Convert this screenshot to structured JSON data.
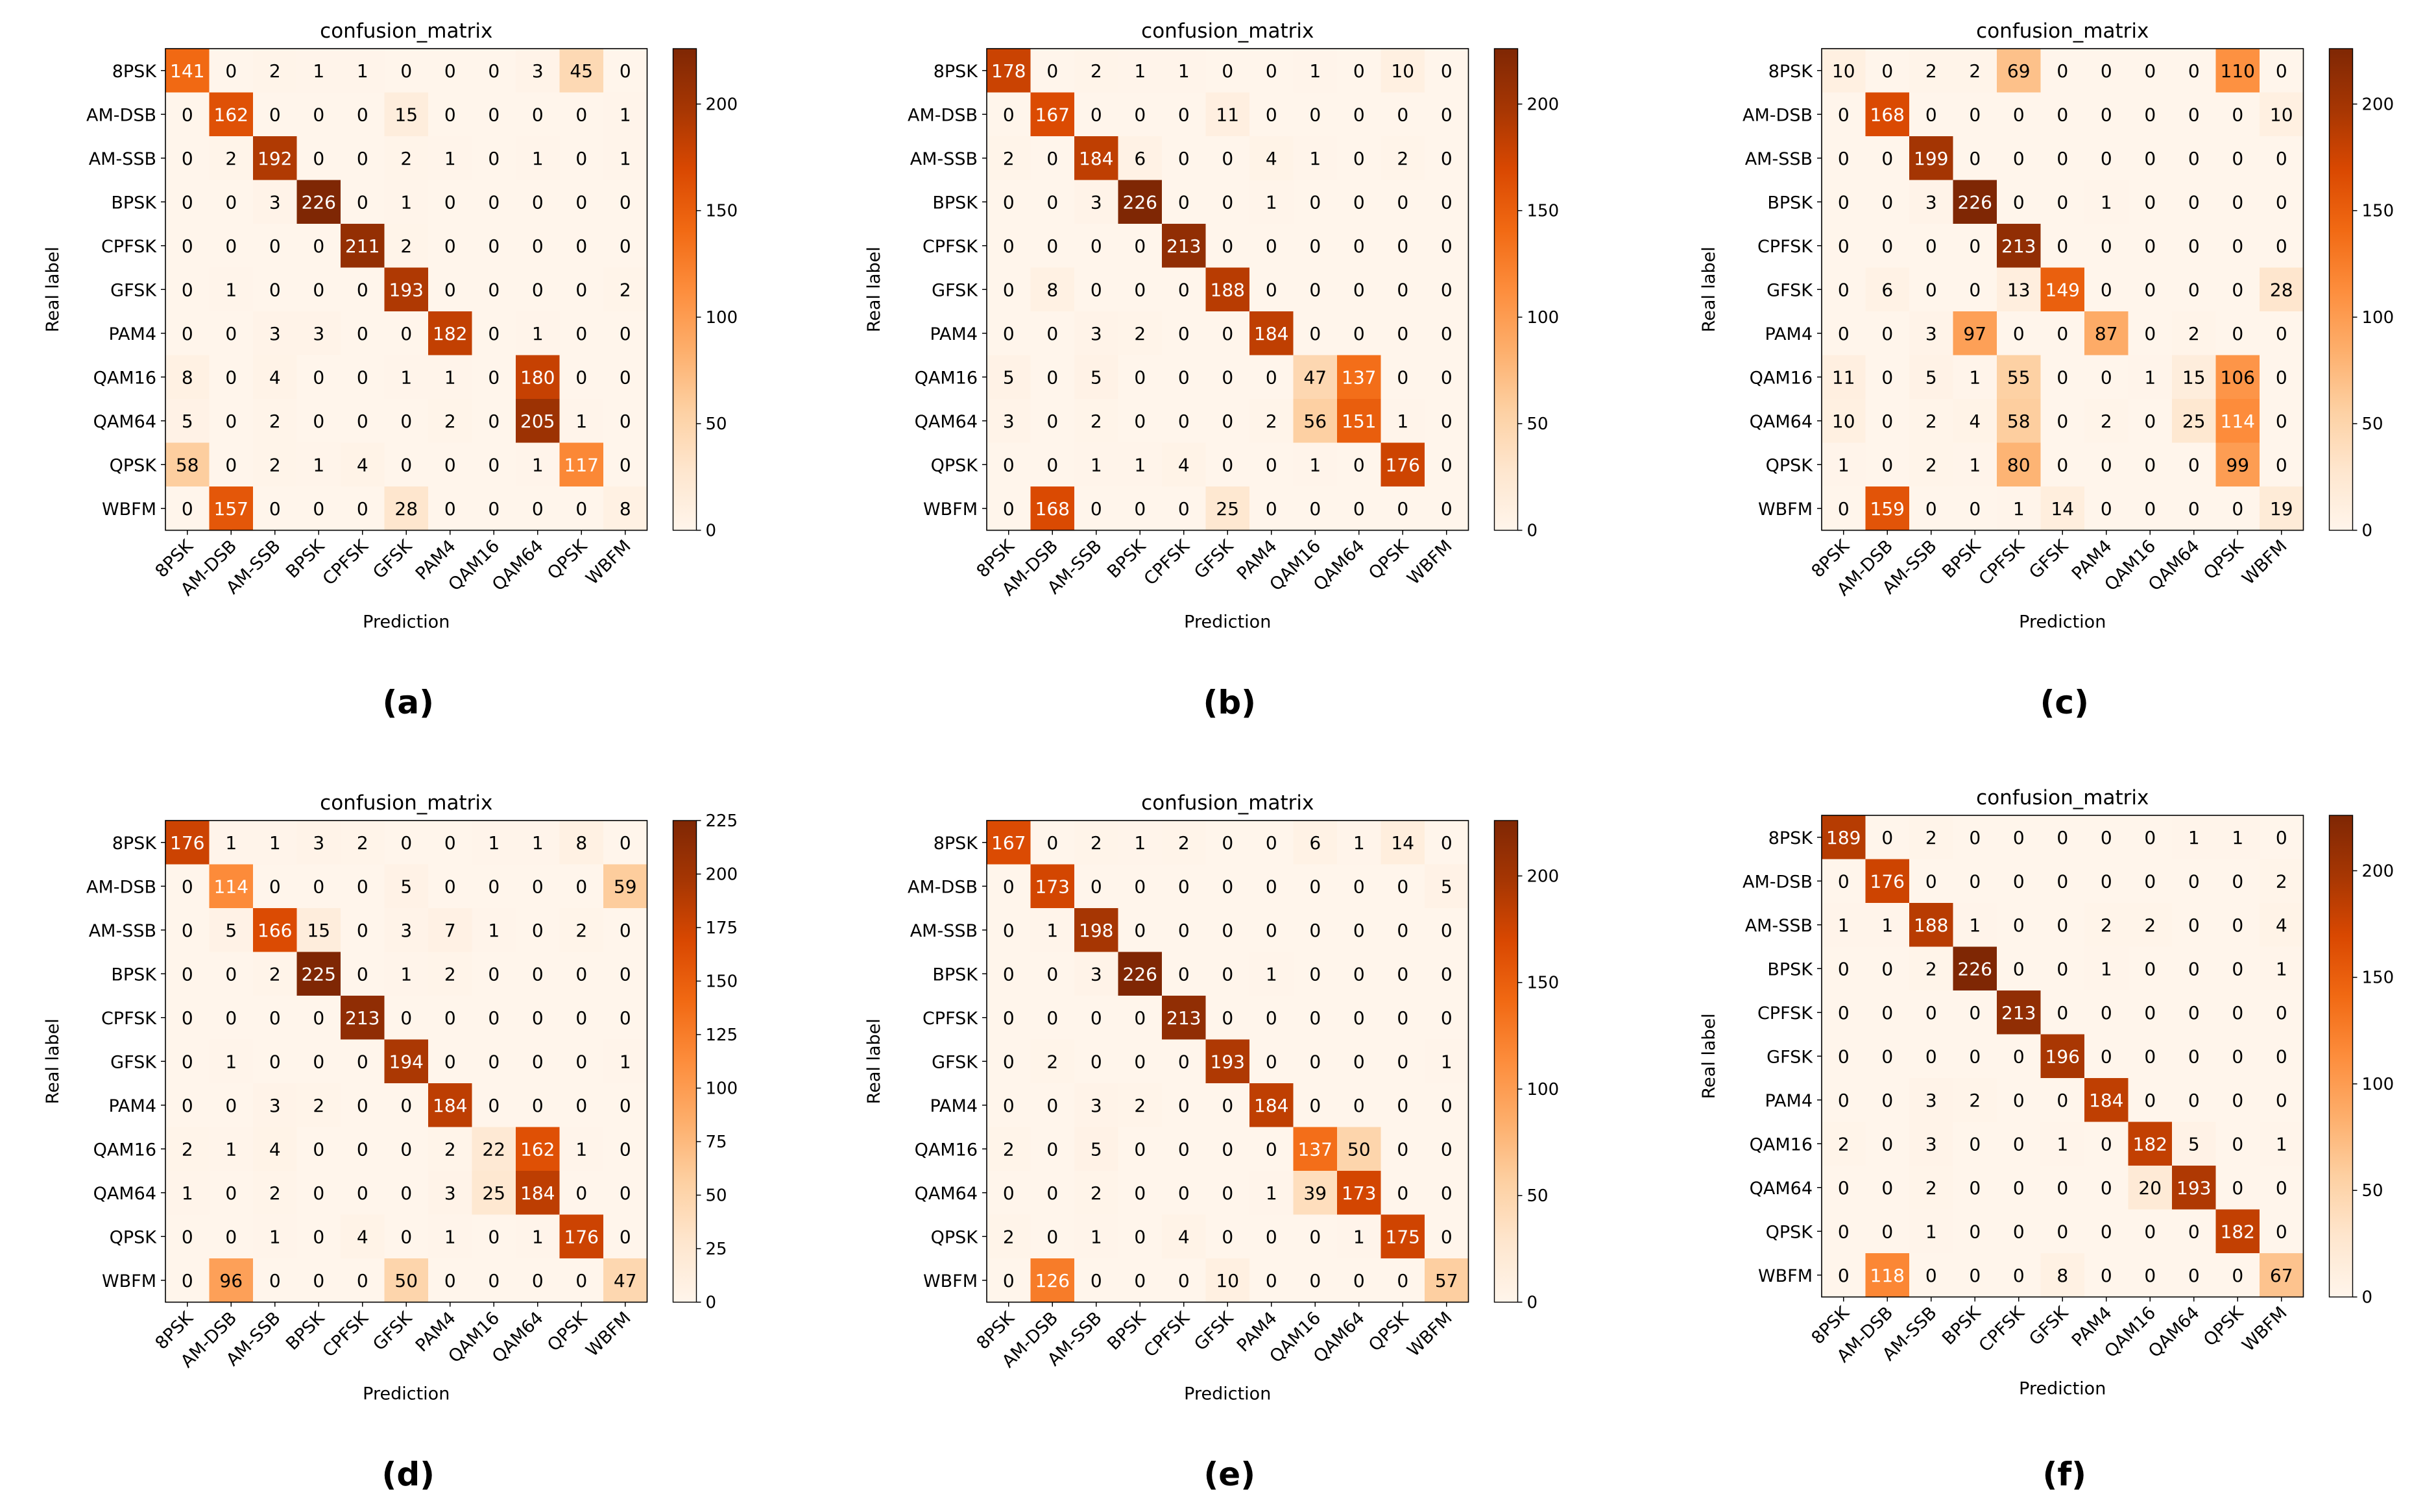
{
  "figure": {
    "panels": [
      "(a)",
      "(b)",
      "(c)",
      "(d)",
      "(e)",
      "(f)"
    ]
  },
  "colormap": {
    "name": "Oranges",
    "stops": [
      "#fff5eb",
      "#fee6ce",
      "#fdd0a2",
      "#fdae6b",
      "#fd8d3c",
      "#f16913",
      "#d94801",
      "#a63603",
      "#7f2704"
    ]
  },
  "chart_data": [
    {
      "type": "heatmap",
      "caption": "(a)",
      "title": "confusion_matrix",
      "xlabel": "Prediction",
      "ylabel": "Real label",
      "labels": [
        "8PSK",
        "AM-DSB",
        "AM-SSB",
        "BPSK",
        "CPFSK",
        "GFSK",
        "PAM4",
        "QAM16",
        "QAM64",
        "QPSK",
        "WBFM"
      ],
      "colorbar": {
        "min": 0,
        "max": 226,
        "ticks": [
          0,
          50,
          100,
          150,
          200
        ]
      },
      "matrix": [
        [
          141,
          0,
          2,
          1,
          1,
          0,
          0,
          0,
          3,
          45,
          0
        ],
        [
          0,
          162,
          0,
          0,
          0,
          15,
          0,
          0,
          0,
          0,
          1
        ],
        [
          0,
          2,
          192,
          0,
          0,
          2,
          1,
          0,
          1,
          0,
          1
        ],
        [
          0,
          0,
          3,
          226,
          0,
          1,
          0,
          0,
          0,
          0,
          0
        ],
        [
          0,
          0,
          0,
          0,
          211,
          2,
          0,
          0,
          0,
          0,
          0
        ],
        [
          0,
          1,
          0,
          0,
          0,
          193,
          0,
          0,
          0,
          0,
          2
        ],
        [
          0,
          0,
          3,
          3,
          0,
          0,
          182,
          0,
          1,
          0,
          0
        ],
        [
          8,
          0,
          4,
          0,
          0,
          1,
          1,
          0,
          180,
          0,
          0
        ],
        [
          5,
          0,
          2,
          0,
          0,
          0,
          2,
          0,
          205,
          1,
          0
        ],
        [
          58,
          0,
          2,
          1,
          4,
          0,
          0,
          0,
          1,
          117,
          0
        ],
        [
          0,
          157,
          0,
          0,
          0,
          28,
          0,
          0,
          0,
          0,
          8
        ]
      ]
    },
    {
      "type": "heatmap",
      "caption": "(b)",
      "title": "confusion_matrix",
      "xlabel": "Prediction",
      "ylabel": "Real label",
      "labels": [
        "8PSK",
        "AM-DSB",
        "AM-SSB",
        "BPSK",
        "CPFSK",
        "GFSK",
        "PAM4",
        "QAM16",
        "QAM64",
        "QPSK",
        "WBFM"
      ],
      "colorbar": {
        "min": 0,
        "max": 226,
        "ticks": [
          0,
          50,
          100,
          150,
          200
        ]
      },
      "matrix": [
        [
          178,
          0,
          2,
          1,
          1,
          0,
          0,
          1,
          0,
          10,
          0
        ],
        [
          0,
          167,
          0,
          0,
          0,
          11,
          0,
          0,
          0,
          0,
          0
        ],
        [
          2,
          0,
          184,
          6,
          0,
          0,
          4,
          1,
          0,
          2,
          0
        ],
        [
          0,
          0,
          3,
          226,
          0,
          0,
          1,
          0,
          0,
          0,
          0
        ],
        [
          0,
          0,
          0,
          0,
          213,
          0,
          0,
          0,
          0,
          0,
          0
        ],
        [
          0,
          8,
          0,
          0,
          0,
          188,
          0,
          0,
          0,
          0,
          0
        ],
        [
          0,
          0,
          3,
          2,
          0,
          0,
          184,
          0,
          0,
          0,
          0
        ],
        [
          5,
          0,
          5,
          0,
          0,
          0,
          0,
          47,
          137,
          0,
          0
        ],
        [
          3,
          0,
          2,
          0,
          0,
          0,
          2,
          56,
          151,
          1,
          0
        ],
        [
          0,
          0,
          1,
          1,
          4,
          0,
          0,
          1,
          0,
          176,
          0
        ],
        [
          0,
          168,
          0,
          0,
          0,
          25,
          0,
          0,
          0,
          0,
          0
        ]
      ]
    },
    {
      "type": "heatmap",
      "caption": "(c)",
      "title": "confusion_matrix",
      "xlabel": "Prediction",
      "ylabel": "Real label",
      "labels": [
        "8PSK",
        "AM-DSB",
        "AM-SSB",
        "BPSK",
        "CPFSK",
        "GFSK",
        "PAM4",
        "QAM16",
        "QAM64",
        "QPSK",
        "WBFM"
      ],
      "colorbar": {
        "min": 0,
        "max": 226,
        "ticks": [
          0,
          50,
          100,
          150,
          200
        ]
      },
      "matrix": [
        [
          10,
          0,
          2,
          2,
          69,
          0,
          0,
          0,
          0,
          110,
          0
        ],
        [
          0,
          168,
          0,
          0,
          0,
          0,
          0,
          0,
          0,
          0,
          10
        ],
        [
          0,
          0,
          199,
          0,
          0,
          0,
          0,
          0,
          0,
          0,
          0
        ],
        [
          0,
          0,
          3,
          226,
          0,
          0,
          1,
          0,
          0,
          0,
          0
        ],
        [
          0,
          0,
          0,
          0,
          213,
          0,
          0,
          0,
          0,
          0,
          0
        ],
        [
          0,
          6,
          0,
          0,
          13,
          149,
          0,
          0,
          0,
          0,
          28
        ],
        [
          0,
          0,
          3,
          97,
          0,
          0,
          87,
          0,
          2,
          0,
          0
        ],
        [
          11,
          0,
          5,
          1,
          55,
          0,
          0,
          1,
          15,
          106,
          0
        ],
        [
          10,
          0,
          2,
          4,
          58,
          0,
          2,
          0,
          25,
          114,
          0
        ],
        [
          1,
          0,
          2,
          1,
          80,
          0,
          0,
          0,
          0,
          99,
          0
        ],
        [
          0,
          159,
          0,
          0,
          1,
          14,
          0,
          0,
          0,
          0,
          19
        ]
      ]
    },
    {
      "type": "heatmap",
      "caption": "(d)",
      "title": "confusion_matrix",
      "xlabel": "Prediction",
      "ylabel": "Real label",
      "labels": [
        "8PSK",
        "AM-DSB",
        "AM-SSB",
        "BPSK",
        "CPFSK",
        "GFSK",
        "PAM4",
        "QAM16",
        "QAM64",
        "QPSK",
        "WBFM"
      ],
      "colorbar": {
        "min": 0,
        "max": 225,
        "ticks": [
          0,
          25,
          50,
          75,
          100,
          125,
          150,
          175,
          200,
          225
        ]
      },
      "matrix": [
        [
          176,
          1,
          1,
          3,
          2,
          0,
          0,
          1,
          1,
          8,
          0
        ],
        [
          0,
          114,
          0,
          0,
          0,
          5,
          0,
          0,
          0,
          0,
          59
        ],
        [
          0,
          5,
          166,
          15,
          0,
          3,
          7,
          1,
          0,
          2,
          0
        ],
        [
          0,
          0,
          2,
          225,
          0,
          1,
          2,
          0,
          0,
          0,
          0
        ],
        [
          0,
          0,
          0,
          0,
          213,
          0,
          0,
          0,
          0,
          0,
          0
        ],
        [
          0,
          1,
          0,
          0,
          0,
          194,
          0,
          0,
          0,
          0,
          1
        ],
        [
          0,
          0,
          3,
          2,
          0,
          0,
          184,
          0,
          0,
          0,
          0
        ],
        [
          2,
          1,
          4,
          0,
          0,
          0,
          2,
          22,
          162,
          1,
          0
        ],
        [
          1,
          0,
          2,
          0,
          0,
          0,
          3,
          25,
          184,
          0,
          0
        ],
        [
          0,
          0,
          1,
          0,
          4,
          0,
          1,
          0,
          1,
          176,
          0
        ],
        [
          0,
          96,
          0,
          0,
          0,
          50,
          0,
          0,
          0,
          0,
          47
        ]
      ]
    },
    {
      "type": "heatmap",
      "caption": "(e)",
      "title": "confusion_matrix",
      "xlabel": "Prediction",
      "ylabel": "Real label",
      "labels": [
        "8PSK",
        "AM-DSB",
        "AM-SSB",
        "BPSK",
        "CPFSK",
        "GFSK",
        "PAM4",
        "QAM16",
        "QAM64",
        "QPSK",
        "WBFM"
      ],
      "colorbar": {
        "min": 0,
        "max": 226,
        "ticks": [
          0,
          50,
          100,
          150,
          200
        ]
      },
      "matrix": [
        [
          167,
          0,
          2,
          1,
          2,
          0,
          0,
          6,
          1,
          14,
          0
        ],
        [
          0,
          173,
          0,
          0,
          0,
          0,
          0,
          0,
          0,
          0,
          5
        ],
        [
          0,
          1,
          198,
          0,
          0,
          0,
          0,
          0,
          0,
          0,
          0
        ],
        [
          0,
          0,
          3,
          226,
          0,
          0,
          1,
          0,
          0,
          0,
          0
        ],
        [
          0,
          0,
          0,
          0,
          213,
          0,
          0,
          0,
          0,
          0,
          0
        ],
        [
          0,
          2,
          0,
          0,
          0,
          193,
          0,
          0,
          0,
          0,
          1
        ],
        [
          0,
          0,
          3,
          2,
          0,
          0,
          184,
          0,
          0,
          0,
          0
        ],
        [
          2,
          0,
          5,
          0,
          0,
          0,
          0,
          137,
          50,
          0,
          0
        ],
        [
          0,
          0,
          2,
          0,
          0,
          0,
          1,
          39,
          173,
          0,
          0
        ],
        [
          2,
          0,
          1,
          0,
          4,
          0,
          0,
          0,
          1,
          175,
          0
        ],
        [
          0,
          126,
          0,
          0,
          0,
          10,
          0,
          0,
          0,
          0,
          57
        ]
      ]
    },
    {
      "type": "heatmap",
      "caption": "(f)",
      "title": "confusion_matrix",
      "xlabel": "Prediction",
      "ylabel": "Real label",
      "labels": [
        "8PSK",
        "AM-DSB",
        "AM-SSB",
        "BPSK",
        "CPFSK",
        "GFSK",
        "PAM4",
        "QAM16",
        "QAM64",
        "QPSK",
        "WBFM"
      ],
      "colorbar": {
        "min": 0,
        "max": 226,
        "ticks": [
          0,
          50,
          100,
          150,
          200
        ]
      },
      "matrix": [
        [
          189,
          0,
          2,
          0,
          0,
          0,
          0,
          0,
          1,
          1,
          0
        ],
        [
          0,
          176,
          0,
          0,
          0,
          0,
          0,
          0,
          0,
          0,
          2
        ],
        [
          1,
          1,
          188,
          1,
          0,
          0,
          2,
          2,
          0,
          0,
          4
        ],
        [
          0,
          0,
          2,
          226,
          0,
          0,
          1,
          0,
          0,
          0,
          1
        ],
        [
          0,
          0,
          0,
          0,
          213,
          0,
          0,
          0,
          0,
          0,
          0
        ],
        [
          0,
          0,
          0,
          0,
          0,
          196,
          0,
          0,
          0,
          0,
          0
        ],
        [
          0,
          0,
          3,
          2,
          0,
          0,
          184,
          0,
          0,
          0,
          0
        ],
        [
          2,
          0,
          3,
          0,
          0,
          1,
          0,
          182,
          5,
          0,
          1
        ],
        [
          0,
          0,
          2,
          0,
          0,
          0,
          0,
          20,
          193,
          0,
          0
        ],
        [
          0,
          0,
          1,
          0,
          0,
          0,
          0,
          0,
          0,
          182,
          0
        ],
        [
          0,
          118,
          0,
          0,
          0,
          8,
          0,
          0,
          0,
          0,
          67
        ]
      ]
    }
  ]
}
